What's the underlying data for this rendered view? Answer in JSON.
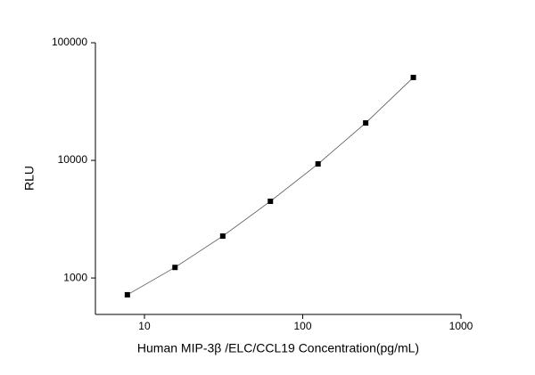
{
  "chart_data": {
    "type": "scatter-line",
    "x_label": "Human  MIP-3β /ELC/CCL19  Concentration(pg/mL)",
    "y_label": "RLU",
    "x": [
      7.8,
      15.6,
      31.25,
      62.5,
      125,
      250,
      500
    ],
    "values": [
      720,
      1230,
      2270,
      4490,
      9330,
      20800,
      50700
    ],
    "color": "#000000",
    "xlim": [
      4.9,
      1000
    ],
    "ylim": [
      490,
      100000
    ],
    "xticks": [
      10,
      100,
      1000
    ],
    "yticks": [
      1000,
      10000,
      100000
    ],
    "xscale": "log",
    "yscale": "log"
  }
}
